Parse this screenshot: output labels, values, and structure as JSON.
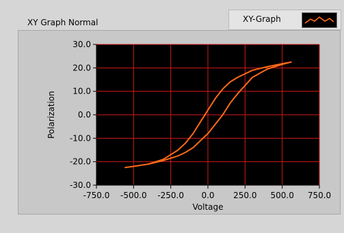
{
  "window": {
    "title": "XY Graph Normal"
  },
  "legend": {
    "label": "XY-Graph",
    "icon": "orange-line-icon"
  },
  "colors": {
    "plot_bg": "#000000",
    "grid": "#d21a1a",
    "trace": "#ff6a1a",
    "panel": "#d6d6d6"
  },
  "chart_data": {
    "type": "line",
    "title": "XY Graph Normal",
    "xlabel": "Voltage",
    "ylabel": "Polarization",
    "xlim": [
      -750,
      750
    ],
    "ylim": [
      -30,
      30
    ],
    "grid": true,
    "legend_position": "top-right",
    "x_ticks": [
      "-750.0",
      "-500.0",
      "-250.0",
      "0.0",
      "250.0",
      "500.0",
      "750.0"
    ],
    "y_ticks": [
      "30.0",
      "20.0",
      "10.0",
      "0.0",
      "-10.0",
      "-20.0",
      "-30.0"
    ],
    "series": [
      {
        "name": "XY-Graph",
        "x": [
          -560,
          -500,
          -400,
          -300,
          -200,
          -150,
          -100,
          -50,
          0,
          50,
          100,
          150,
          200,
          300,
          400,
          500,
          560,
          500,
          400,
          300,
          200,
          150,
          100,
          50,
          0,
          -50,
          -100,
          -150,
          -200,
          -300,
          -400,
          -500,
          -560
        ],
        "y": [
          -22.5,
          -22,
          -21,
          -19,
          -15,
          -12,
          -8,
          -3,
          2,
          7,
          11,
          14,
          16,
          19,
          20.5,
          21.8,
          22.5,
          21.5,
          19.5,
          16,
          9,
          5,
          0,
          -4,
          -8,
          -11,
          -14,
          -16,
          -17.5,
          -19.5,
          -21,
          -22,
          -22.5
        ]
      }
    ]
  }
}
